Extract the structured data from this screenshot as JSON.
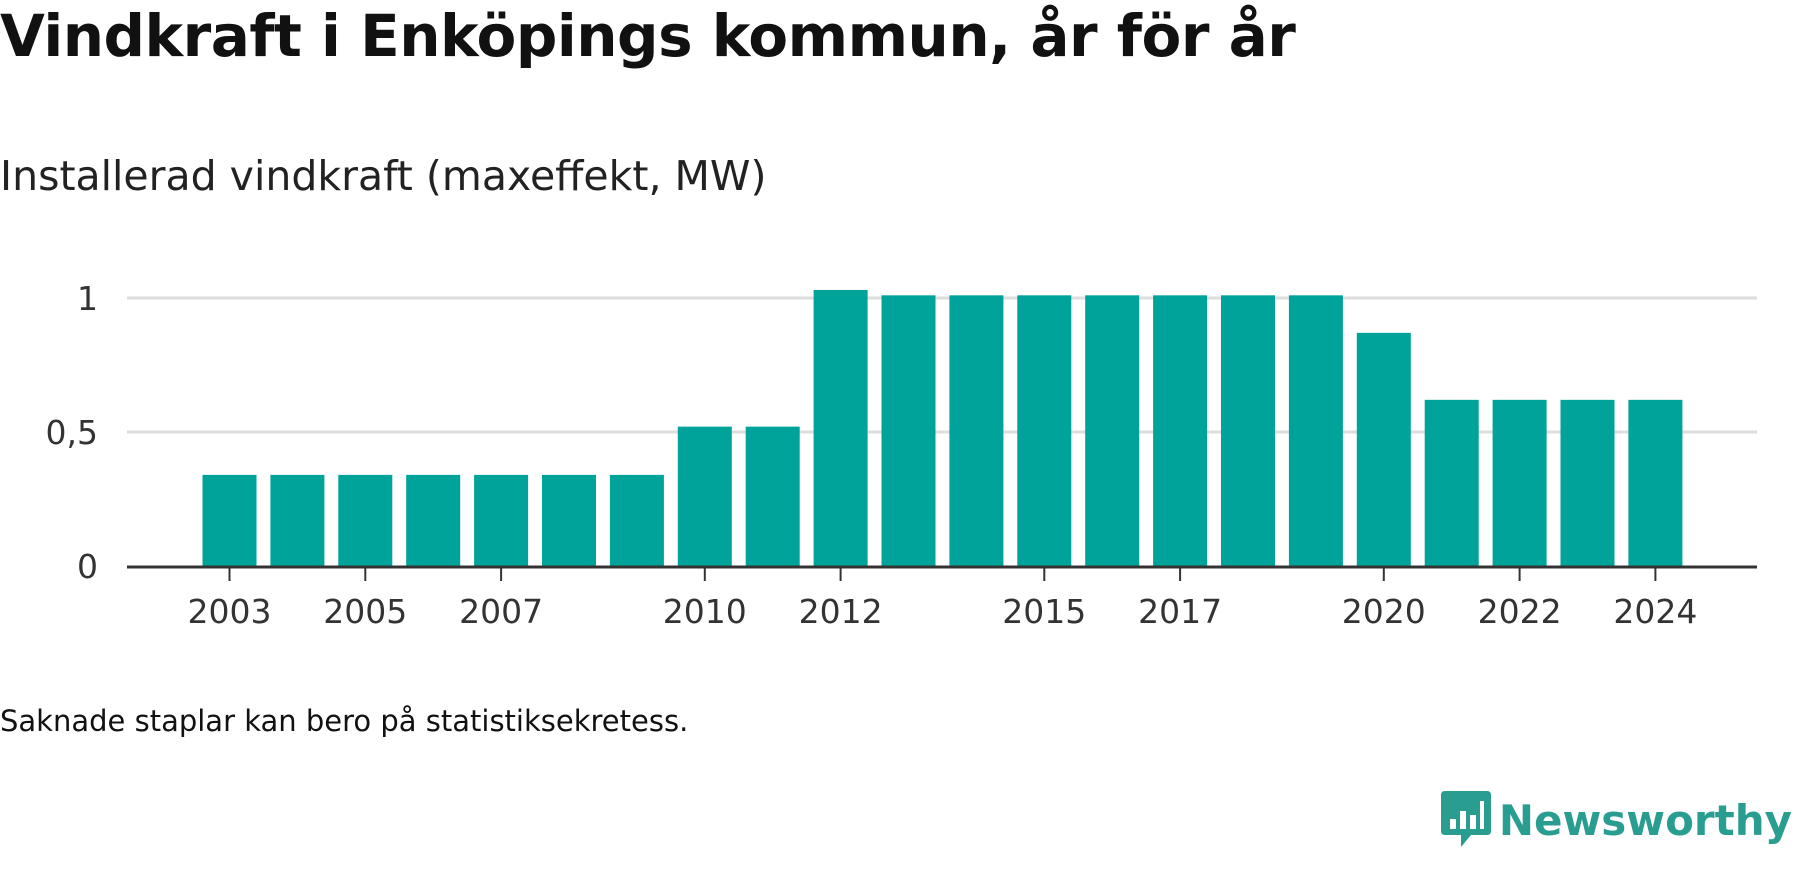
{
  "title": "Vindkraft i Enköpings kommun, år för år",
  "subtitle": "Installerad vindkraft (maxeffekt, MW)",
  "note": "Saknade staplar kan bero på statistiksekretess.",
  "brand": {
    "name": "Newsworthy",
    "icon": "newsworthy-logo-icon"
  },
  "colors": {
    "bar": "#00a39a",
    "grid": "#dddddd",
    "axis": "#333333",
    "brand": "#2a9d91"
  },
  "chart_data": {
    "type": "bar",
    "title": "",
    "xlabel": "",
    "ylabel": "",
    "categories": [
      "2003",
      "2004",
      "2005",
      "2006",
      "2007",
      "2008",
      "2009",
      "2010",
      "2011",
      "2012",
      "2013",
      "2014",
      "2015",
      "2016",
      "2017",
      "2018",
      "2019",
      "2020",
      "2021",
      "2022",
      "2023",
      "2024"
    ],
    "values": [
      0.34,
      0.34,
      0.34,
      0.34,
      0.34,
      0.34,
      0.34,
      0.52,
      0.52,
      1.03,
      1.01,
      1.01,
      1.01,
      1.01,
      1.01,
      1.01,
      1.01,
      0.87,
      0.62,
      0.62,
      0.62,
      0.62
    ],
    "ylim": [
      0,
      1
    ],
    "yticks": [
      0,
      0.5,
      1
    ],
    "ytick_labels": [
      "0",
      "0,5",
      "1"
    ],
    "xtick_labels": [
      "2003",
      "2005",
      "2007",
      "2010",
      "2012",
      "2015",
      "2017",
      "2020",
      "2022",
      "2024"
    ],
    "grid": true,
    "legend": "none"
  }
}
